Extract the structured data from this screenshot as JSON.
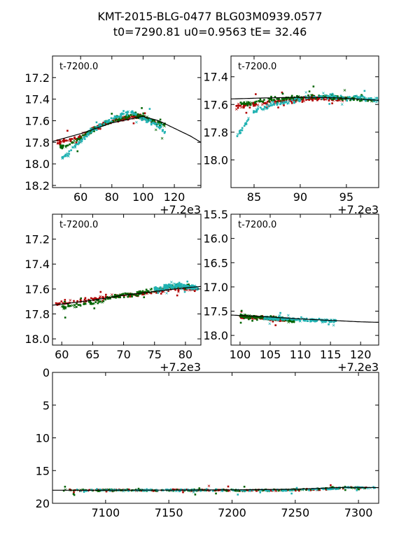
{
  "figure": {
    "title_line1": "KMT-2015-BLG-0477 BLG03M0939.0577",
    "title_line2": "t0=7290.81 u0=0.9563 tE=  32.46",
    "colors": {
      "red": "#b00000",
      "green": "#006400",
      "cyan": "#20b2b2",
      "model": "#000000"
    }
  },
  "chart_data": [
    {
      "type": "scatter",
      "panel_label": "t-7200.0",
      "offset_label": "+7.2e3",
      "xlim": [
        42,
        137
      ],
      "ylim": [
        18.22,
        17.0
      ],
      "xticks": [
        60,
        80,
        100,
        120
      ],
      "xtick_labels": [
        "60",
        "80",
        "100",
        "120"
      ],
      "yticks": [
        17.2,
        17.4,
        17.6,
        17.8,
        18.0,
        18.2
      ],
      "ytick_labels": [
        "17.2",
        "17.4",
        "17.6",
        "17.8",
        "18.0",
        "18.2"
      ],
      "series": [
        {
          "name": "red",
          "x": [
            45,
            52,
            60,
            68,
            75,
            82,
            90,
            98,
            105,
            108
          ],
          "y": [
            17.8,
            17.78,
            17.75,
            17.68,
            17.63,
            17.6,
            17.57,
            17.56,
            17.6,
            17.62
          ]
        },
        {
          "name": "green",
          "x": [
            46,
            55,
            63,
            72,
            80,
            88,
            95,
            102,
            110,
            115
          ],
          "y": [
            17.85,
            17.8,
            17.73,
            17.65,
            17.6,
            17.57,
            17.55,
            17.58,
            17.62,
            17.65
          ]
        },
        {
          "name": "cyan",
          "x": [
            48,
            58,
            66,
            78,
            86,
            93,
            100,
            108,
            114
          ],
          "y": [
            17.95,
            17.82,
            17.7,
            17.6,
            17.55,
            17.52,
            17.58,
            17.63,
            17.7
          ]
        }
      ],
      "model": {
        "x": [
          40,
          60,
          80,
          100,
          110,
          120,
          130,
          137
        ],
        "y": [
          17.8,
          17.72,
          17.62,
          17.56,
          17.6,
          17.67,
          17.74,
          17.8
        ]
      }
    },
    {
      "type": "scatter",
      "panel_label": "t-7200.0",
      "offset_label": "+7.2e3",
      "xlim": [
        82.5,
        98.5
      ],
      "ylim": [
        18.2,
        17.25
      ],
      "xticks": [
        85,
        90,
        95
      ],
      "xtick_labels": [
        "85",
        "90",
        "95"
      ],
      "yticks": [
        17.4,
        17.6,
        17.8,
        18.0
      ],
      "ytick_labels": [
        "17.4",
        "17.6",
        "17.8",
        "18.0"
      ],
      "series": [
        {
          "name": "red",
          "x": [
            83,
            85,
            87,
            89,
            91,
            93,
            95
          ],
          "y": [
            17.62,
            17.6,
            17.58,
            17.57,
            17.56,
            17.56,
            17.56
          ]
        },
        {
          "name": "green",
          "x": [
            83.5,
            86,
            88,
            90,
            92,
            94,
            96,
            98
          ],
          "y": [
            17.6,
            17.57,
            17.56,
            17.55,
            17.54,
            17.55,
            17.56,
            17.58
          ]
        },
        {
          "name": "cyan",
          "x": [
            83,
            85,
            87,
            89,
            91,
            93,
            95,
            97,
            98.5
          ],
          "y": [
            17.85,
            17.65,
            17.6,
            17.58,
            17.55,
            17.54,
            17.55,
            17.56,
            17.57
          ]
        }
      ],
      "model": {
        "x": [
          82.5,
          86,
          90,
          94,
          98.5
        ],
        "y": [
          17.56,
          17.553,
          17.548,
          17.552,
          17.57
        ]
      }
    },
    {
      "type": "scatter",
      "panel_label": "t-7200.0",
      "offset_label": "+7.2e3",
      "xlim": [
        58.5,
        82.5
      ],
      "ylim": [
        18.05,
        17.0
      ],
      "xticks": [
        60,
        65,
        70,
        75,
        80
      ],
      "xtick_labels": [
        "60",
        "65",
        "70",
        "75",
        "80"
      ],
      "yticks": [
        17.2,
        17.4,
        17.6,
        17.8,
        18.0
      ],
      "ytick_labels": [
        "17.2",
        "17.4",
        "17.6",
        "17.8",
        "18.0"
      ],
      "series": [
        {
          "name": "red",
          "x": [
            59,
            62,
            65,
            68,
            71,
            74,
            77,
            80,
            82
          ],
          "y": [
            17.72,
            17.7,
            17.68,
            17.66,
            17.65,
            17.63,
            17.6,
            17.6,
            17.6
          ]
        },
        {
          "name": "green",
          "x": [
            60,
            63,
            66,
            69,
            72,
            75,
            78,
            81
          ],
          "y": [
            17.75,
            17.72,
            17.7,
            17.66,
            17.64,
            17.6,
            17.58,
            17.58
          ]
        },
        {
          "name": "cyan",
          "x": [
            75,
            76,
            77,
            78,
            79,
            80,
            81,
            82
          ],
          "y": [
            17.6,
            17.6,
            17.58,
            17.58,
            17.57,
            17.58,
            17.58,
            17.6
          ]
        }
      ],
      "model": {
        "x": [
          58.5,
          65,
          70,
          75,
          80,
          82.5
        ],
        "y": [
          17.73,
          17.69,
          17.65,
          17.62,
          17.59,
          17.58
        ]
      }
    },
    {
      "type": "scatter",
      "panel_label": "t-7200.0",
      "offset_label": "+7.2e3",
      "xlim": [
        98.5,
        123
      ],
      "ylim": [
        18.2,
        15.5
      ],
      "xticks": [
        100,
        105,
        110,
        115,
        120
      ],
      "xtick_labels": [
        "100",
        "105",
        "110",
        "115",
        "120"
      ],
      "yticks": [
        15.5,
        16.0,
        16.5,
        17.0,
        17.5,
        18.0
      ],
      "ytick_labels": [
        "15.5",
        "16.0",
        "16.5",
        "17.0",
        "17.5",
        "18.0"
      ],
      "series": [
        {
          "name": "red",
          "x": [
            100,
            102,
            104,
            106,
            108
          ],
          "y": [
            17.62,
            17.63,
            17.64,
            17.67,
            17.68
          ]
        },
        {
          "name": "green",
          "x": [
            100,
            103,
            105,
            107,
            109
          ],
          "y": [
            17.6,
            17.62,
            17.65,
            17.66,
            17.7
          ]
        },
        {
          "name": "cyan",
          "x": [
            104,
            106,
            108,
            110,
            112,
            114,
            116
          ],
          "y": [
            17.64,
            17.66,
            17.66,
            17.68,
            17.68,
            17.7,
            17.7
          ]
        }
      ],
      "model": {
        "x": [
          98.5,
          105,
          110,
          115,
          120,
          123
        ],
        "y": [
          17.58,
          17.62,
          17.66,
          17.69,
          17.72,
          17.73
        ]
      }
    },
    {
      "type": "scatter",
      "panel_label": "",
      "offset_label": "",
      "xlim": [
        7058,
        7316
      ],
      "ylim": [
        20,
        0
      ],
      "xticks": [
        7100,
        7150,
        7200,
        7250,
        7300
      ],
      "xtick_labels": [
        "7100",
        "7150",
        "7200",
        "7250",
        "7300"
      ],
      "yticks": [
        0,
        5,
        10,
        15,
        20
      ],
      "ytick_labels": [
        "0",
        "5",
        "10",
        "15",
        "20"
      ],
      "series": [
        {
          "name": "red",
          "x": [
            7070,
            7090,
            7110,
            7130,
            7150,
            7170,
            7190,
            7210,
            7230,
            7250,
            7270,
            7290,
            7310
          ],
          "y": [
            18,
            18,
            18,
            18.02,
            18,
            18.01,
            18,
            18.05,
            18,
            17.96,
            17.9,
            17.6,
            17.7
          ]
        },
        {
          "name": "green",
          "x": [
            7065,
            7085,
            7105,
            7125,
            7145,
            7165,
            7185,
            7205,
            7225,
            7245,
            7265,
            7285,
            7305
          ],
          "y": [
            18,
            18.02,
            18,
            18,
            18.01,
            18.03,
            18,
            18.02,
            18,
            17.95,
            17.88,
            17.62,
            17.68
          ]
        },
        {
          "name": "cyan",
          "x": [
            7075,
            7095,
            7115,
            7135,
            7155,
            7175,
            7195,
            7215,
            7235,
            7255,
            7275,
            7295,
            7315
          ],
          "y": [
            18,
            18,
            18.01,
            18,
            18.02,
            18,
            18,
            18.01,
            18,
            17.93,
            17.85,
            17.58,
            17.65
          ]
        }
      ],
      "model": {
        "x": [
          7058,
          7150,
          7200,
          7250,
          7290,
          7316
        ],
        "y": [
          18.0,
          17.99,
          17.95,
          17.85,
          17.56,
          17.6
        ]
      }
    }
  ]
}
